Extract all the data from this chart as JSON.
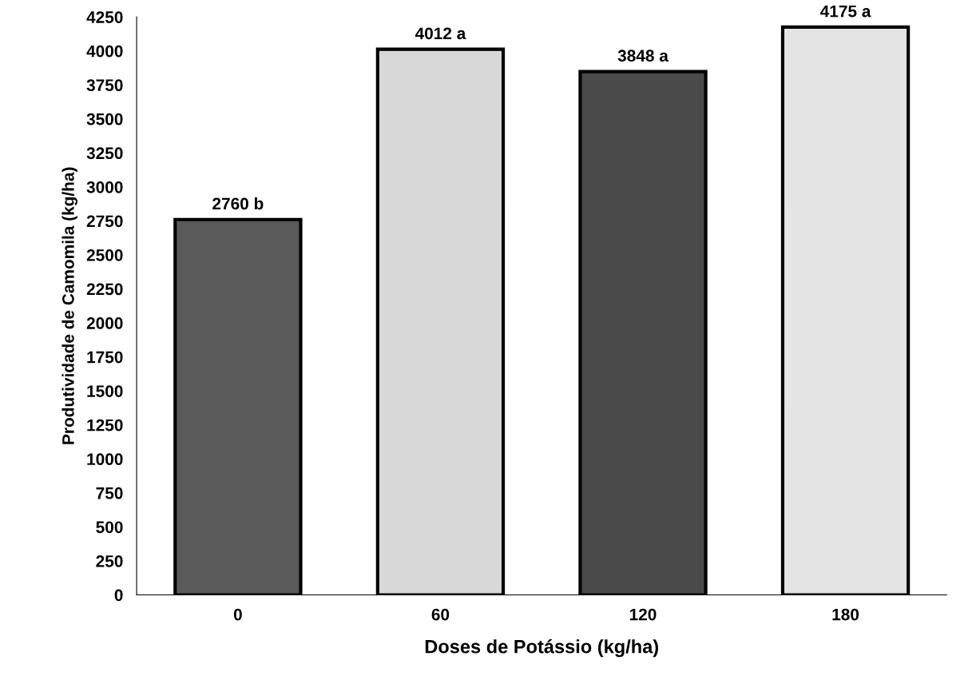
{
  "chart_data": {
    "type": "bar",
    "xlabel": "Doses de Potássio (kg/ha)",
    "ylabel": "Produtividade de Camomila (kg/ha)",
    "categories": [
      "0",
      "60",
      "120",
      "180"
    ],
    "values": [
      2760,
      4012,
      3848,
      4175
    ],
    "colors": [
      "#5a5a5a",
      "#d8d8d8",
      "#4a4a4a",
      "#e4e4e4"
    ],
    "value_labels": [
      "2760 b",
      "4012 a",
      "3848 a",
      "4175 a"
    ],
    "ylim": [
      0,
      4250
    ],
    "yticks": [
      0,
      250,
      500,
      750,
      1000,
      1250,
      1500,
      1750,
      2000,
      2250,
      2500,
      2750,
      3000,
      3250,
      3500,
      3750,
      4000,
      4250
    ],
    "grid": false,
    "legend": false
  }
}
